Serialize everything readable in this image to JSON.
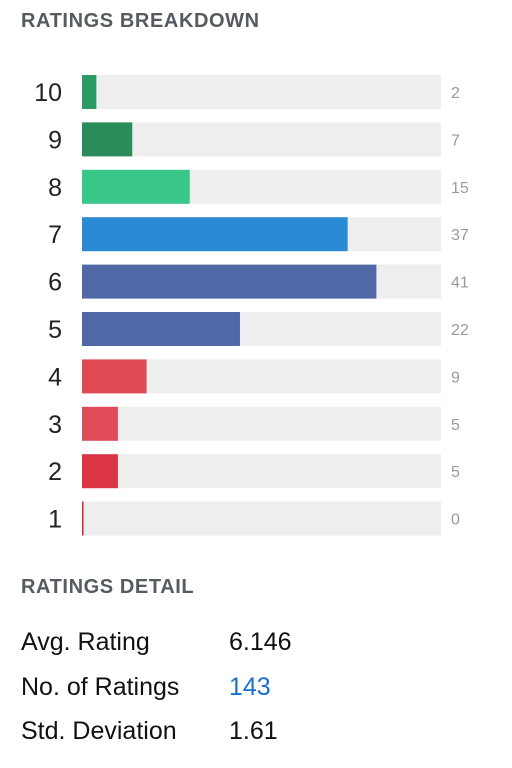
{
  "breakdown": {
    "title": "RATINGS BREAKDOWN"
  },
  "chart_data": {
    "type": "bar",
    "orientation": "horizontal",
    "categories": [
      "10",
      "9",
      "8",
      "7",
      "6",
      "5",
      "4",
      "3",
      "2",
      "1"
    ],
    "values": [
      2,
      7,
      15,
      37,
      41,
      22,
      9,
      5,
      5,
      0
    ],
    "xlim": [
      0,
      50
    ],
    "colors": [
      "#2e9a63",
      "#2a8c5b",
      "#3ac78a",
      "#2a8ad4",
      "#5068a6",
      "#5068a6",
      "#df4a55",
      "#e04b5a",
      "#dc3545",
      "#c8283a"
    ],
    "track_color": "#eeeeee"
  },
  "detail": {
    "title": "RATINGS DETAIL",
    "rows": [
      {
        "label": "Avg. Rating",
        "value": "6.146"
      },
      {
        "label": "No. of Ratings",
        "value": "143"
      },
      {
        "label": "Std. Deviation",
        "value": "1.61"
      }
    ]
  }
}
